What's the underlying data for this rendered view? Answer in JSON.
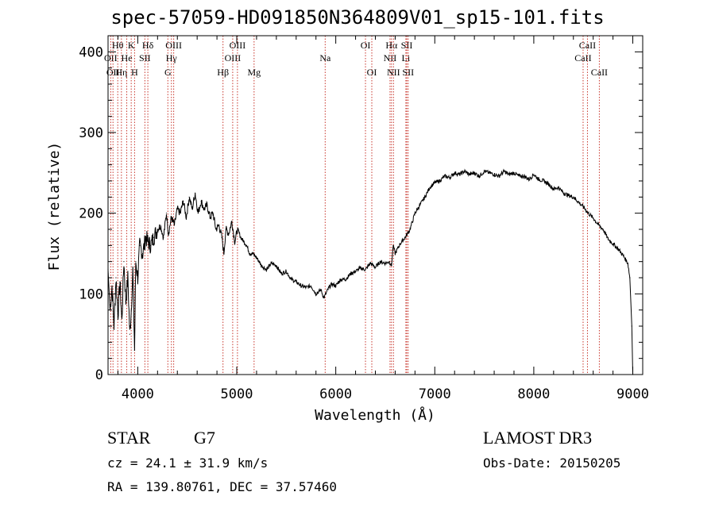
{
  "chart_data": {
    "type": "line",
    "title": "spec-57059-HD091850N364809V01_sp15-101.fits",
    "xlabel": "Wavelength (Å)",
    "ylabel": "Flux (relative)",
    "xlim": [
      3700,
      9100
    ],
    "ylim": [
      0,
      420
    ],
    "x_ticks": [
      4000,
      5000,
      6000,
      7000,
      8000,
      9000
    ],
    "y_ticks": [
      0,
      100,
      200,
      300,
      400
    ],
    "grid": false,
    "series": [
      {
        "name": "flux",
        "x": [
          3700,
          3720,
          3740,
          3760,
          3780,
          3800,
          3820,
          3840,
          3860,
          3880,
          3900,
          3920,
          3934,
          3950,
          3968,
          3980,
          4000,
          4020,
          4050,
          4080,
          4100,
          4130,
          4160,
          4200,
          4230,
          4260,
          4290,
          4310,
          4340,
          4370,
          4400,
          4430,
          4460,
          4490,
          4520,
          4550,
          4580,
          4610,
          4640,
          4670,
          4700,
          4730,
          4760,
          4790,
          4820,
          4850,
          4870,
          4890,
          4920,
          4950,
          4980,
          5010,
          5040,
          5070,
          5100,
          5130,
          5160,
          5200,
          5250,
          5300,
          5350,
          5400,
          5450,
          5500,
          5550,
          5600,
          5650,
          5700,
          5750,
          5800,
          5850,
          5880,
          5900,
          5930,
          5960,
          6000,
          6050,
          6100,
          6150,
          6200,
          6250,
          6300,
          6350,
          6400,
          6450,
          6500,
          6540,
          6563,
          6580,
          6600,
          6650,
          6700,
          6750,
          6800,
          6850,
          6900,
          6950,
          7000,
          7050,
          7100,
          7150,
          7200,
          7250,
          7300,
          7350,
          7400,
          7450,
          7500,
          7550,
          7600,
          7650,
          7700,
          7750,
          7800,
          7850,
          7900,
          7950,
          8000,
          8050,
          8100,
          8150,
          8200,
          8250,
          8300,
          8350,
          8400,
          8450,
          8500,
          8550,
          8600,
          8650,
          8700,
          8750,
          8800,
          8850,
          8900,
          8950,
          8970,
          8990,
          9000
        ],
        "values": [
          130,
          80,
          110,
          60,
          120,
          75,
          115,
          65,
          140,
          90,
          120,
          50,
          80,
          130,
          30,
          140,
          120,
          160,
          150,
          170,
          165,
          160,
          170,
          180,
          185,
          170,
          200,
          175,
          195,
          185,
          205,
          200,
          215,
          195,
          220,
          205,
          225,
          200,
          215,
          205,
          210,
          195,
          200,
          180,
          185,
          170,
          150,
          180,
          175,
          190,
          165,
          180,
          170,
          165,
          160,
          150,
          150,
          145,
          135,
          130,
          138,
          135,
          125,
          128,
          118,
          115,
          110,
          108,
          110,
          100,
          105,
          95,
          100,
          108,
          112,
          110,
          118,
          118,
          125,
          128,
          132,
          130,
          138,
          133,
          140,
          138,
          140,
          135,
          160,
          150,
          162,
          170,
          180,
          200,
          210,
          220,
          232,
          238,
          240,
          246,
          244,
          250,
          248,
          252,
          248,
          250,
          246,
          252,
          250,
          248,
          246,
          252,
          248,
          250,
          246,
          246,
          242,
          248,
          242,
          240,
          236,
          230,
          232,
          225,
          222,
          220,
          214,
          208,
          200,
          194,
          186,
          180,
          168,
          162,
          156,
          148,
          138,
          120,
          60,
          0
        ]
      }
    ],
    "spectral_lines": [
      {
        "x": 3727,
        "label": "OII",
        "row": 2
      },
      {
        "x": 3750,
        "label": "OII",
        "row": 3
      },
      {
        "x": 3798,
        "label": "Hθ",
        "row": 1
      },
      {
        "x": 3835,
        "label": "Hη",
        "row": 3
      },
      {
        "x": 3889,
        "label": "He",
        "row": 2
      },
      {
        "x": 3934,
        "label": "K",
        "row": 1
      },
      {
        "x": 3968,
        "label": "H",
        "row": 3
      },
      {
        "x": 4102,
        "label": "Hδ",
        "row": 1
      },
      {
        "x": 4072,
        "label": "SII",
        "row": 2
      },
      {
        "x": 4304,
        "label": "G",
        "row": 3
      },
      {
        "x": 4340,
        "label": "Hγ",
        "row": 2
      },
      {
        "x": 4363,
        "label": "OIII",
        "row": 1
      },
      {
        "x": 4861,
        "label": "Hβ",
        "row": 3
      },
      {
        "x": 4959,
        "label": "OIII",
        "row": 2
      },
      {
        "x": 5007,
        "label": "OIII",
        "row": 1
      },
      {
        "x": 5175,
        "label": "Mg",
        "row": 3
      },
      {
        "x": 5893,
        "label": "Na",
        "row": 2
      },
      {
        "x": 6300,
        "label": "OI",
        "row": 1
      },
      {
        "x": 6364,
        "label": "OI",
        "row": 3
      },
      {
        "x": 6548,
        "label": "NII",
        "row": 2
      },
      {
        "x": 6563,
        "label": "Hα",
        "row": 1
      },
      {
        "x": 6583,
        "label": "NII",
        "row": 3
      },
      {
        "x": 6708,
        "label": "Li",
        "row": 2
      },
      {
        "x": 6717,
        "label": "SII",
        "row": 1
      },
      {
        "x": 6731,
        "label": "SII",
        "row": 3
      },
      {
        "x": 8498,
        "label": "CaII",
        "row": 2
      },
      {
        "x": 8542,
        "label": "CaII",
        "row": 1
      },
      {
        "x": 8662,
        "label": "CaII",
        "row": 3
      }
    ],
    "line_color": "#c8352b"
  },
  "info": {
    "object_type": "STAR",
    "subclass": "G7",
    "survey": "LAMOST DR3",
    "redshift": "cz = 24.1 ± 31.9 km/s",
    "obs_date": "Obs-Date: 20150205",
    "coords": "RA = 139.80761, DEC =  37.57460"
  }
}
